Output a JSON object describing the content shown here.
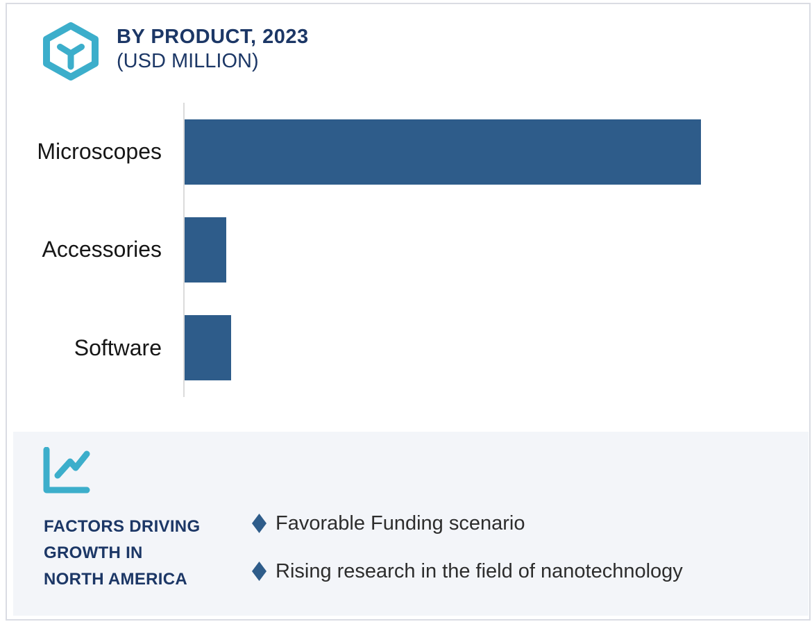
{
  "page": {
    "background": "#ffffff",
    "border_color": "#dadce3"
  },
  "header": {
    "icon": "hexagon-cube-icon",
    "icon_color": "#3caecb",
    "title_line1": "BY PRODUCT, 2023",
    "title_line2": "(USD MILLION)",
    "title_color": "#1c3766"
  },
  "chart_data": {
    "type": "bar",
    "orientation": "horizontal",
    "title": "BY PRODUCT, 2023 (USD MILLION)",
    "xlabel": "",
    "ylabel": "",
    "categories": [
      "Microscopes",
      "Accessories",
      "Software"
    ],
    "values_pct_of_max": [
      100,
      8,
      9
    ],
    "value_labels_shown": false,
    "axis_tick_labels_shown": false,
    "grid": false,
    "legend": false,
    "bar_color": "#2e5c8a",
    "axis_line_color": "#dbdbdb",
    "label_color": "#161616"
  },
  "factors": {
    "icon": "line-chart-icon",
    "icon_color": "#3caecb",
    "panel_background": "#f3f5f9",
    "heading_lines": [
      "FACTORS DRIVING",
      "GROWTH IN",
      "NORTH AMERICA"
    ],
    "heading_color": "#1c3766",
    "bullet_shape": "diamond",
    "bullet_color": "#2e5c8a",
    "items": [
      "Favorable Funding scenario",
      "Rising research in the field of nanotechnology"
    ]
  }
}
